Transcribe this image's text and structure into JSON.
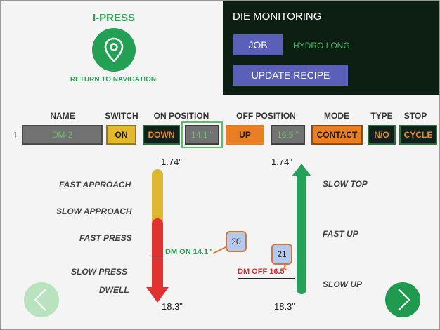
{
  "brand": {
    "title": "I-PRESS",
    "nav_label": "RETURN TO NAVIGATION",
    "icon": "location-pin-icon"
  },
  "panel": {
    "title": "DIE MONITORING",
    "job_button": "JOB",
    "job_value": "HYDRO LONG",
    "update_recipe_button": "UPDATE RECIPE"
  },
  "headers": {
    "name": "NAME",
    "switch": "SWITCH",
    "on_position": "ON POSITION",
    "off_position": "OFF POSITION",
    "mode": "MODE",
    "type": "TYPE",
    "stop": "STOP"
  },
  "row": {
    "number": "1",
    "name": "DM-2",
    "switch": "ON",
    "on_direction": "DOWN",
    "on_position": "14.1 \"",
    "off_direction": "UP",
    "off_position": "16.5 \"",
    "mode": "CONTACT",
    "type": "N/O",
    "stop": "CYCLE"
  },
  "diagram": {
    "down_top": "1.74\"",
    "down_bottom": "18.3\"",
    "up_top": "1.74\"",
    "up_bottom": "18.3\"",
    "down_stages": [
      "FAST APPROACH",
      "SLOW APPROACH",
      "FAST PRESS",
      "SLOW PRESS",
      "DWELL"
    ],
    "up_stages": [
      "SLOW TOP",
      "FAST UP",
      "SLOW UP"
    ],
    "dm_on_label": "DM ON 14.1\"",
    "dm_off_label": "DM OFF 16.5\"",
    "dm_on_bubble": "20",
    "dm_off_bubble": "21"
  },
  "colors": {
    "accent_green": "#24a055",
    "panel_bg": "#0d1f12",
    "button_blue": "#5a5fb8",
    "orange": "#e97f22",
    "yellow": "#dfb832",
    "red": "#e03232"
  }
}
